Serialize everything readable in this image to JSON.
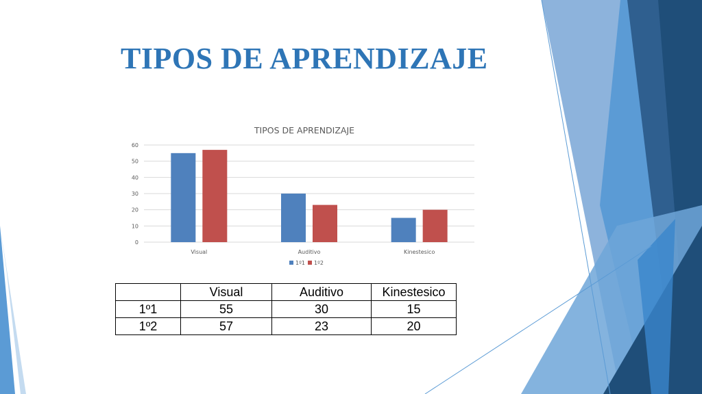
{
  "slide": {
    "title": "TIPOS DE APRENDIZAJE",
    "colors": {
      "title": "#2e75b6",
      "deco_dark": "#1f4e79",
      "deco_mid": "#2e75b6",
      "deco_light": "#9dc3e6"
    }
  },
  "chart_data": {
    "type": "bar",
    "title": "TIPOS DE APRENDIZAJE",
    "categories": [
      "Visual",
      "Auditivo",
      "Kinestesico"
    ],
    "series": [
      {
        "name": "1º1",
        "values": [
          55,
          30,
          15
        ],
        "color": "#4f81bd"
      },
      {
        "name": "1º2",
        "values": [
          57,
          23,
          20
        ],
        "color": "#c0504d"
      }
    ],
    "ylim": [
      0,
      60
    ],
    "yticks": [
      0,
      10,
      20,
      30,
      40,
      50,
      60
    ],
    "grid": true,
    "legend": "bottom"
  },
  "table": {
    "header": [
      "",
      "Visual",
      "Auditivo",
      "Kinestesico"
    ],
    "rows": [
      [
        "1º1",
        "55",
        "30",
        "15"
      ],
      [
        "1º2",
        "57",
        "23",
        "20"
      ]
    ]
  }
}
